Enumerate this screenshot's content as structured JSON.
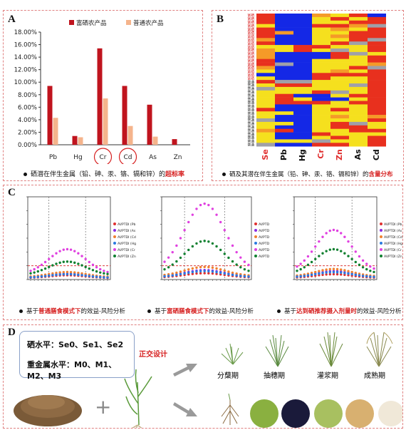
{
  "panels": {
    "A": {
      "label": "A",
      "caption_pre": "硒潜在伴生金属（铅、砷、汞、铬、镉和锌）的",
      "caption_hl": "超标率",
      "chart_data": {
        "type": "bar",
        "categories": [
          "Pb",
          "Hg",
          "Cr",
          "Cd",
          "As",
          "Zn"
        ],
        "series": [
          {
            "name": "富硒农产品",
            "color": "#c0141e",
            "values": [
              9.4,
              1.4,
              15.4,
              9.4,
              6.4,
              0.9
            ]
          },
          {
            "name": "普通农产品",
            "color": "#f5b48c",
            "values": [
              4.3,
              1.2,
              7.4,
              3.0,
              1.3,
              0.0
            ]
          }
        ],
        "ylim": [
          0,
          18
        ],
        "yticks": [
          "0.00%",
          "2.00%",
          "4.00%",
          "6.00%",
          "8.00%",
          "10.00%",
          "12.00%",
          "14.00%",
          "16.00%",
          "18.00%"
        ],
        "highlighted": [
          "Cr",
          "Cd"
        ]
      }
    },
    "B": {
      "label": "B",
      "caption_pre": "硒及其潜在伴生金属（铅、砷、汞、铬、镉和锌）的",
      "caption_hl": "含量分布",
      "columns": [
        {
          "label": "Se",
          "color": "#e03030"
        },
        {
          "label": "Pb",
          "color": "#111111"
        },
        {
          "label": "Hg",
          "color": "#111111"
        },
        {
          "label": "Cr",
          "color": "#e03030"
        },
        {
          "label": "Zn",
          "color": "#e03030"
        },
        {
          "label": "As",
          "color": "#111111"
        },
        {
          "label": "Cd",
          "color": "#111111"
        }
      ],
      "row_label_red": "富硒",
      "row_label_black": "普通"
    },
    "C": {
      "label": "C",
      "subplots": [
        {
          "caption_pre": "基于",
          "caption_hl": "普通膳食模式下",
          "caption_post": "的效益-风险分析",
          "legend": [
            "AVPTDI (Pb",
            "AVPTDI (As",
            "AVPTDI (Cd",
            "AVPTDI (Hg",
            "AVPTDI (Cr",
            "AVPTDI (Zn"
          ]
        },
        {
          "caption_pre": "基于",
          "caption_hl": "富硒膳食模式下",
          "caption_post": "的效益-风险分析",
          "legend": [
            "AVPTD",
            "AVPTD",
            "AVPTD",
            "AVPTD",
            "AVPTD",
            "AVPTD"
          ]
        },
        {
          "caption_pre": "基于",
          "caption_hl": "达到硒推荐摄入剂量时",
          "caption_post": "的效益-风险分析",
          "legend": [
            "AVPTDI (Pb",
            "AVPTDI (As",
            "AVPTDI (Cd",
            "AVPTDI (Hg",
            "AVPTDI (Cr",
            "AVPTDI (Zn"
          ]
        }
      ]
    },
    "D": {
      "label": "D",
      "se_level": "硒水平：Se0、Se1、Se2",
      "metal_level": "重金属水平：M0、M1、M2、M3",
      "design": "正交设计",
      "plus": "+",
      "stages": [
        "分蘖期",
        "抽穗期",
        "灌浆期",
        "成熟期"
      ]
    }
  },
  "colors": {
    "red": "#c0141e",
    "light_orange": "#f5b48c",
    "heat_red": "#e8301e",
    "heat_orange": "#f59a28",
    "heat_yellow": "#f5e01e",
    "heat_blue": "#1428e6",
    "heat_grey": "#a0a0a8"
  }
}
